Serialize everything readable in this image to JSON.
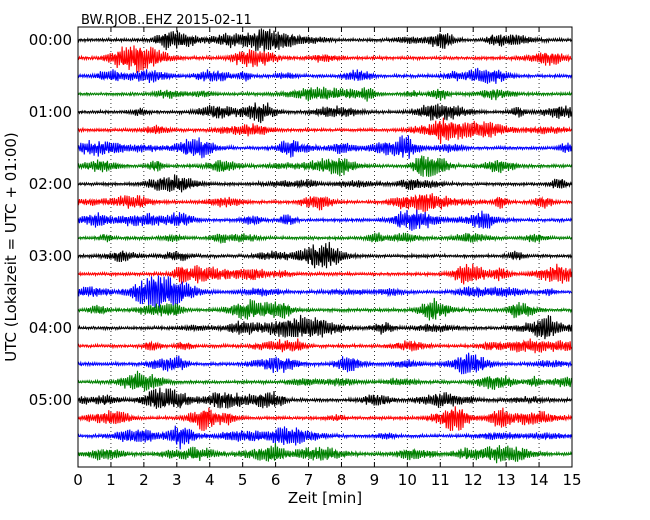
{
  "chart_data": {
    "type": "line",
    "title": "BW.RJOB..EHZ 2015-02-11",
    "xlabel": "Zeit  [min]",
    "ylabel": "UTC (Lokalzeit = UTC + 01:00)",
    "xlim": [
      0,
      15
    ],
    "x_ticks": [
      "0",
      "1",
      "2",
      "3",
      "4",
      "5",
      "6",
      "7",
      "8",
      "9",
      "10",
      "11",
      "12",
      "13",
      "14",
      "15"
    ],
    "y_ticks": [
      "00:00",
      "01:00",
      "02:00",
      "03:00",
      "04:00",
      "05:00"
    ],
    "grid_x": true,
    "trace_count": 24,
    "trace_colors": [
      "#000000",
      "#ff0000",
      "#0000ff",
      "#008000"
    ]
  }
}
